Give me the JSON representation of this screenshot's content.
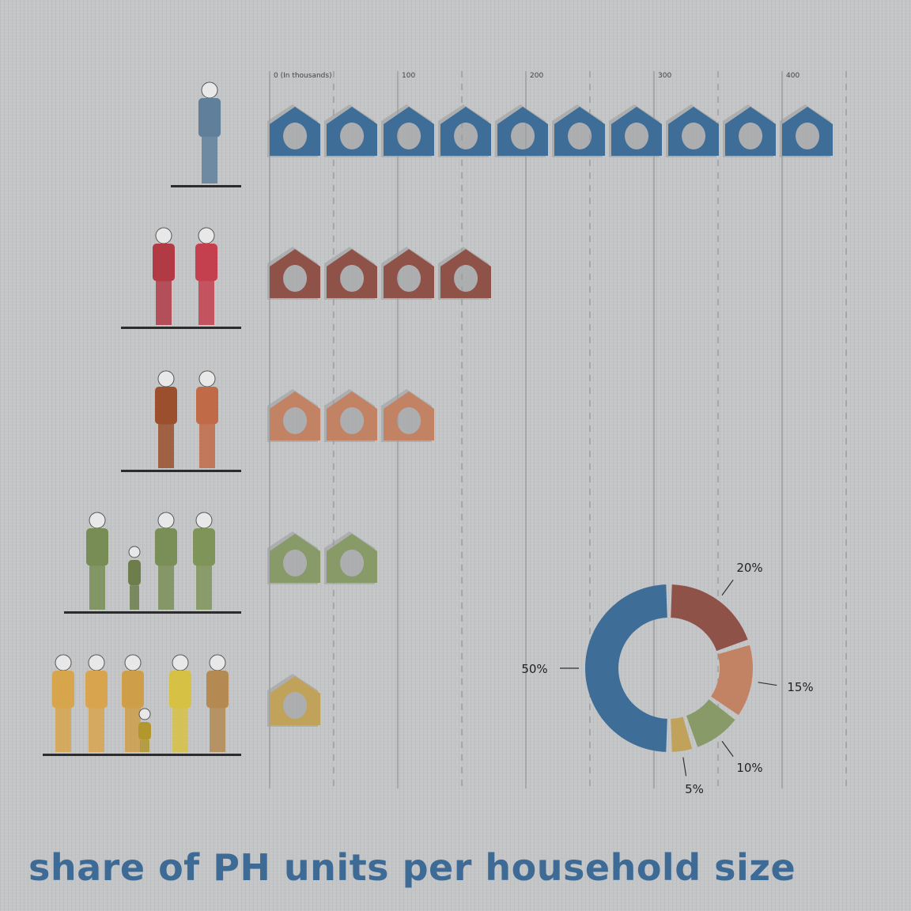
{
  "chart_data": [
    {
      "type": "bar",
      "subtype": "pictogram",
      "title": "share of PH units per household size",
      "axis_unit_label": "(In thousands)",
      "x_ticks": [
        "0",
        "100",
        "200",
        "300",
        "400"
      ],
      "xlim": [
        0,
        450
      ],
      "grid": "vertical, solid at labeled ticks, dashed at midpoints",
      "categories": [
        "1 person",
        "2 persons",
        "3 persons",
        "4 persons",
        "5+ persons"
      ],
      "icon_counts": [
        10,
        4,
        3,
        2,
        1
      ],
      "values": [
        444,
        178,
        133,
        89,
        44
      ],
      "colors": [
        "#3e6d98",
        "#8f5249",
        "#c28264",
        "#889a68",
        "#c0a25a"
      ]
    },
    {
      "type": "pie",
      "subtype": "donut",
      "labels": [
        "20%",
        "15%",
        "10%",
        "5%",
        "50%"
      ],
      "values": [
        20,
        15,
        10,
        5,
        50
      ],
      "colors": [
        "#8f5249",
        "#c28264",
        "#889a68",
        "#c0a25a",
        "#3e6d98"
      ]
    }
  ]
}
